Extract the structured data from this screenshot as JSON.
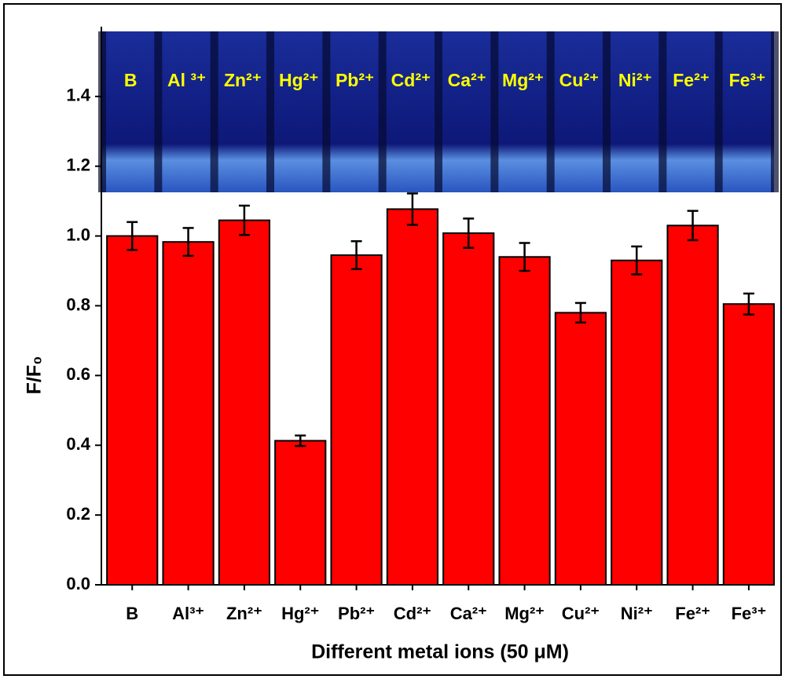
{
  "chart_data": {
    "type": "bar",
    "x_label": "Different metal ions (50 μM)",
    "y_label": "F/F₀",
    "categories": [
      "B",
      "Al³⁺",
      "Zn²⁺",
      "Hg²⁺",
      "Pb²⁺",
      "Cd²⁺",
      "Ca²⁺",
      "Mg²⁺",
      "Cu²⁺",
      "Ni²⁺",
      "Fe²⁺",
      "Fe³⁺"
    ],
    "values": [
      1.0,
      0.983,
      1.045,
      0.413,
      0.945,
      1.077,
      1.008,
      0.94,
      0.78,
      0.93,
      1.03,
      0.805
    ],
    "errors": [
      0.04,
      0.04,
      0.042,
      0.015,
      0.04,
      0.045,
      0.042,
      0.04,
      0.028,
      0.04,
      0.042,
      0.03
    ],
    "color": "#ff0000",
    "inset_labels": [
      "B",
      "Al ³⁺",
      "Zn²⁺",
      "Hg²⁺",
      "Pb²⁺",
      "Cd²⁺",
      "Ca²⁺",
      "Mg²⁺",
      "Cu²⁺",
      "Ni²⁺",
      "Fe²⁺",
      "Fe³⁺"
    ],
    "ylim": [
      0,
      1.6
    ],
    "yticks": [
      {
        "value": 0,
        "label": "0.0"
      },
      0.2,
      0.4,
      0.6,
      0.8,
      {
        "value": 1,
        "label": "1.0"
      },
      1.2,
      1.4
    ]
  }
}
